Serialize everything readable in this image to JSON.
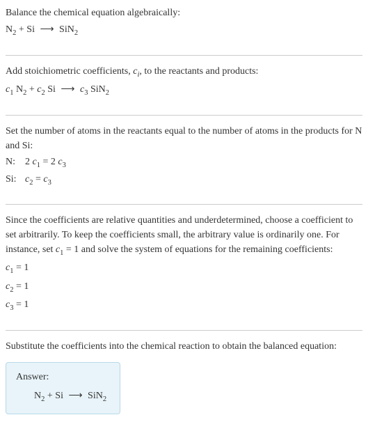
{
  "section1": {
    "title": "Balance the chemical equation algebraically:",
    "equation_parts": {
      "r1": "N",
      "r1_sub": "2",
      "plus": " + ",
      "r2": "Si",
      "arrow": "⟶",
      "p1": "SiN",
      "p1_sub": "2"
    }
  },
  "section2": {
    "title_part1": "Add stoichiometric coefficients, ",
    "title_var": "c",
    "title_var_sub": "i",
    "title_part2": ", to the reactants and products:",
    "eq": {
      "c1": "c",
      "c1_sub": "1",
      "sp1": " ",
      "r1": "N",
      "r1_sub": "2",
      "plus": " + ",
      "c2": "c",
      "c2_sub": "2",
      "sp2": " ",
      "r2": "Si",
      "arrow": "⟶",
      "c3": "c",
      "c3_sub": "3",
      "sp3": " ",
      "p1": "SiN",
      "p1_sub": "2"
    }
  },
  "section3": {
    "title": "Set the number of atoms in the reactants equal to the number of atoms in the products for N and Si:",
    "rows": [
      {
        "label": "N: ",
        "lhs_coef": "2 ",
        "lhs_var": "c",
        "lhs_sub": "1",
        "eq": " = ",
        "rhs_coef": "2 ",
        "rhs_var": "c",
        "rhs_sub": "3"
      },
      {
        "label": "Si: ",
        "lhs_coef": "",
        "lhs_var": "c",
        "lhs_sub": "2",
        "eq": " = ",
        "rhs_coef": "",
        "rhs_var": "c",
        "rhs_sub": "3"
      }
    ]
  },
  "section4": {
    "para_part1": "Since the coefficients are relative quantities and underdetermined, choose a coefficient to set arbitrarily. To keep the coefficients small, the arbitrary value is ordinarily one. For instance, set ",
    "para_var": "c",
    "para_var_sub": "1",
    "para_part2": " = 1 and solve the system of equations for the remaining coefficients:",
    "coeffs": [
      {
        "var": "c",
        "sub": "1",
        "eq": " = 1"
      },
      {
        "var": "c",
        "sub": "2",
        "eq": " = 1"
      },
      {
        "var": "c",
        "sub": "3",
        "eq": " = 1"
      }
    ]
  },
  "section5": {
    "title": "Substitute the coefficients into the chemical reaction to obtain the balanced equation:",
    "answer_label": "Answer:",
    "answer": {
      "r1": "N",
      "r1_sub": "2",
      "plus": " + ",
      "r2": "Si",
      "arrow": "⟶",
      "p1": "SiN",
      "p1_sub": "2"
    }
  },
  "colors": {
    "text": "#333333",
    "divider": "#cccccc",
    "answer_bg": "#e8f4f9",
    "answer_border": "#b8d8e8"
  }
}
